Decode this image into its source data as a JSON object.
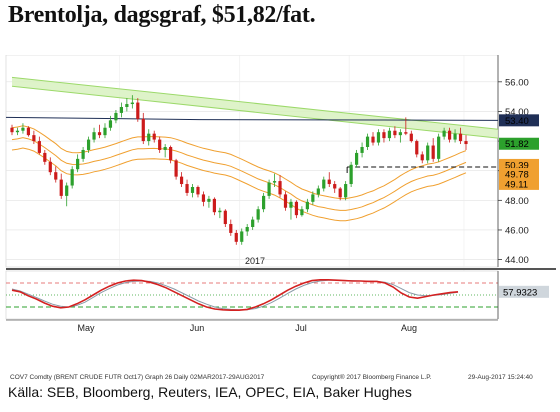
{
  "header": {
    "title": "Brentolja, dagsgraf, $51,82/fat."
  },
  "footer": {
    "bloomberg_info": "COV7 Comdty (BRENT CRUDE FUTR  Oct17) Graph 26  Daily 02MAR2017-29AUG2017",
    "copyright": "Copyright® 2017 Bloomberg Finance L.P.",
    "timestamp": "29-Aug-2017 15:24:40",
    "source": "Källa: SEB, Bloomberg, Reuters, IEA, OPEC, EIA, Baker Hughes"
  },
  "colors": {
    "up_candle": "#2ca02c",
    "down_candle": "#cc1b1b",
    "channel_fill": "#d8f1c0",
    "channel_line": "#9cd96a",
    "ma_dark": "#1f2f56",
    "ma_orange": "#f0a030",
    "stoch_red": "#d42020",
    "stoch_gray": "#8a9aa8"
  },
  "chart_data": [
    {
      "type": "candlestick",
      "ylim": [
        43.5,
        57
      ],
      "yticks": [
        "44.00",
        "46.00",
        "48.00",
        "50.00",
        "52.00",
        "54.00",
        "56.00"
      ],
      "xlabels": [
        "May",
        "Jun",
        "Jul",
        "Aug"
      ],
      "year_label": "2017",
      "value_tags": [
        {
          "label": "53.40",
          "value": 53.4,
          "color": "#1f2f56"
        },
        {
          "label": "51.82",
          "value": 51.82,
          "color": "#2ca02c"
        },
        {
          "label": "50.39",
          "value": 50.39,
          "color": "#f0a030"
        },
        {
          "label": "49.78",
          "value": 49.78,
          "color": "#f0a030"
        },
        {
          "label": "49.11",
          "value": 49.11,
          "color": "#f0a030"
        }
      ],
      "support_level": 50.25,
      "channel": {
        "upper": [
          56.3,
          52.8
        ],
        "lower": [
          55.7,
          52.2
        ]
      },
      "candles": [
        [
          52.9,
          53.1,
          52.4,
          52.6
        ],
        [
          52.6,
          52.9,
          52.4,
          52.7
        ],
        [
          52.7,
          53.2,
          52.5,
          52.9
        ],
        [
          52.9,
          53.0,
          52.3,
          52.4
        ],
        [
          52.4,
          52.7,
          51.8,
          52.0
        ],
        [
          52.0,
          52.3,
          51.1,
          51.2
        ],
        [
          51.2,
          51.4,
          50.4,
          50.6
        ],
        [
          50.6,
          50.9,
          49.7,
          49.9
        ],
        [
          49.9,
          50.3,
          49.2,
          49.4
        ],
        [
          49.4,
          49.8,
          48.1,
          48.3
        ],
        [
          48.3,
          49.2,
          47.6,
          49.0
        ],
        [
          49.0,
          50.3,
          48.8,
          50.1
        ],
        [
          50.1,
          51.1,
          49.9,
          50.8
        ],
        [
          50.8,
          51.6,
          50.6,
          51.4
        ],
        [
          51.4,
          52.3,
          51.2,
          52.1
        ],
        [
          52.1,
          52.9,
          51.9,
          52.6
        ],
        [
          52.6,
          53.1,
          52.2,
          52.4
        ],
        [
          52.4,
          53.2,
          52.2,
          52.9
        ],
        [
          52.9,
          53.7,
          52.7,
          53.4
        ],
        [
          53.4,
          54.1,
          53.2,
          53.9
        ],
        [
          53.9,
          54.6,
          53.6,
          54.3
        ],
        [
          54.3,
          54.9,
          54.0,
          54.5
        ],
        [
          54.5,
          55.1,
          54.2,
          54.6
        ],
        [
          54.6,
          54.9,
          53.3,
          53.5
        ],
        [
          53.5,
          53.9,
          51.8,
          52.0
        ],
        [
          52.0,
          52.8,
          51.7,
          52.5
        ],
        [
          52.5,
          52.7,
          51.9,
          52.1
        ],
        [
          52.1,
          52.3,
          51.2,
          51.4
        ],
        [
          51.4,
          51.8,
          50.9,
          51.6
        ],
        [
          51.6,
          51.7,
          50.5,
          50.7
        ],
        [
          50.7,
          50.8,
          49.4,
          49.6
        ],
        [
          49.6,
          49.9,
          48.9,
          49.1
        ],
        [
          49.1,
          49.4,
          48.3,
          48.5
        ],
        [
          48.5,
          49.1,
          48.2,
          48.9
        ],
        [
          48.9,
          49.0,
          48.2,
          48.4
        ],
        [
          48.4,
          48.6,
          47.6,
          47.9
        ],
        [
          47.9,
          48.3,
          47.5,
          48.1
        ],
        [
          48.1,
          48.2,
          47.0,
          47.2
        ],
        [
          47.2,
          47.5,
          46.8,
          47.3
        ],
        [
          47.3,
          47.4,
          46.2,
          46.4
        ],
        [
          46.4,
          46.7,
          45.6,
          45.8
        ],
        [
          45.8,
          46.0,
          45.0,
          45.2
        ],
        [
          45.2,
          46.1,
          45.0,
          45.9
        ],
        [
          45.9,
          46.4,
          45.6,
          46.2
        ],
        [
          46.2,
          46.9,
          46.0,
          46.7
        ],
        [
          46.7,
          47.6,
          46.5,
          47.4
        ],
        [
          47.4,
          48.5,
          47.2,
          48.3
        ],
        [
          48.3,
          49.4,
          48.1,
          49.2
        ],
        [
          49.2,
          49.8,
          48.9,
          49.3
        ],
        [
          49.3,
          49.7,
          48.2,
          48.4
        ],
        [
          48.4,
          48.6,
          47.3,
          47.5
        ],
        [
          47.5,
          48.1,
          46.7,
          47.9
        ],
        [
          47.9,
          48.0,
          46.8,
          47.0
        ],
        [
          47.0,
          47.6,
          46.9,
          47.4
        ],
        [
          47.4,
          48.1,
          47.2,
          47.9
        ],
        [
          47.9,
          48.6,
          47.7,
          48.4
        ],
        [
          48.4,
          49.0,
          48.2,
          48.8
        ],
        [
          48.8,
          49.6,
          48.6,
          49.4
        ],
        [
          49.4,
          49.9,
          48.9,
          49.1
        ],
        [
          49.1,
          49.3,
          48.5,
          48.8
        ],
        [
          48.8,
          48.9,
          48.0,
          48.2
        ],
        [
          48.2,
          49.3,
          48.0,
          49.1
        ],
        [
          49.1,
          50.6,
          48.9,
          50.4
        ],
        [
          50.4,
          51.4,
          50.2,
          51.2
        ],
        [
          51.2,
          51.9,
          50.9,
          51.6
        ],
        [
          51.6,
          52.5,
          51.4,
          52.3
        ],
        [
          52.3,
          52.6,
          51.7,
          51.9
        ],
        [
          51.9,
          52.8,
          51.7,
          52.6
        ],
        [
          52.6,
          52.8,
          51.9,
          52.2
        ],
        [
          52.2,
          52.9,
          52.0,
          52.7
        ],
        [
          52.7,
          53.0,
          52.2,
          52.4
        ],
        [
          52.4,
          52.8,
          51.9,
          52.6
        ],
        [
          52.6,
          53.6,
          52.4,
          52.5
        ],
        [
          52.5,
          52.7,
          51.9,
          52.0
        ],
        [
          52.0,
          52.1,
          50.9,
          51.1
        ],
        [
          51.1,
          51.3,
          50.5,
          50.7
        ],
        [
          50.7,
          51.9,
          50.5,
          51.7
        ],
        [
          51.7,
          52.2,
          50.6,
          50.8
        ],
        [
          50.8,
          52.5,
          50.6,
          52.3
        ],
        [
          52.3,
          52.9,
          52.1,
          52.7
        ],
        [
          52.7,
          52.9,
          51.9,
          52.1
        ],
        [
          52.1,
          52.8,
          51.9,
          52.5
        ],
        [
          52.5,
          52.9,
          51.8,
          52.0
        ],
        [
          52.0,
          52.4,
          51.4,
          51.8
        ]
      ]
    },
    {
      "type": "line",
      "name": "stochastic",
      "ylim": [
        0,
        100
      ],
      "value_tag": "57.9323",
      "series_k": [
        62,
        58,
        48,
        40,
        30,
        22,
        18,
        20,
        28,
        38,
        50,
        62,
        72,
        80,
        85,
        87,
        86,
        82,
        76,
        68,
        58,
        48,
        38,
        28,
        20,
        15,
        13,
        12,
        12,
        14,
        20,
        28,
        38,
        50,
        62,
        72,
        80,
        86,
        88,
        88,
        87,
        86,
        85,
        85,
        84,
        84,
        80,
        70,
        55,
        45,
        42,
        46,
        50,
        53,
        56,
        58
      ],
      "series_d": [
        65,
        60,
        52,
        44,
        35,
        27,
        22,
        20,
        24,
        32,
        44,
        56,
        66,
        75,
        81,
        84,
        85,
        84,
        80,
        73,
        65,
        55,
        45,
        35,
        27,
        20,
        16,
        14,
        13,
        13,
        16,
        22,
        31,
        42,
        54,
        65,
        74,
        81,
        85,
        87,
        87,
        86,
        86,
        85,
        85,
        84,
        82,
        76,
        66,
        56,
        50,
        48,
        49,
        51,
        54,
        57
      ]
    }
  ]
}
